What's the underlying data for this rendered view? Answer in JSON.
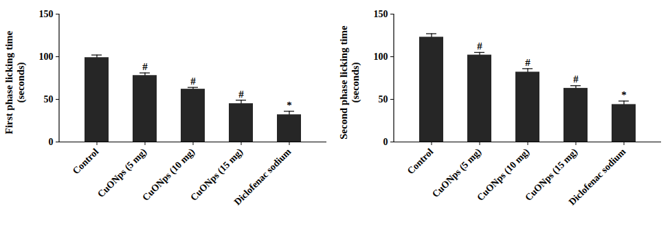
{
  "chart_data": [
    {
      "type": "bar",
      "ylabel": [
        "First phase licking time",
        "(seconds)"
      ],
      "categories": [
        "Control",
        "CuONps (5 mg)",
        "CuONps (10 mg)",
        "CuONps (15 mg)",
        "Diclofenac sodium"
      ],
      "values": [
        99,
        78,
        62,
        45,
        32
      ],
      "errors": [
        3,
        3,
        2,
        4,
        4
      ],
      "significance": [
        null,
        "#",
        "#",
        "#",
        "*"
      ],
      "color": "#262626",
      "ylim": [
        0,
        150
      ],
      "yticks": [
        0,
        50,
        100,
        150
      ],
      "grid": false
    },
    {
      "type": "bar",
      "ylabel": [
        "Second phase licking time",
        "(seconds)"
      ],
      "categories": [
        "Control",
        "CuONps (5 mg)",
        "CuONps (10 mg)",
        "CuONps (15 mg)",
        "Diclofenac sodium"
      ],
      "values": [
        123,
        102,
        82,
        63,
        44
      ],
      "errors": [
        4,
        3,
        4,
        3,
        4
      ],
      "significance": [
        null,
        "#",
        "#",
        "#",
        "*"
      ],
      "color": "#262626",
      "ylim": [
        0,
        150
      ],
      "yticks": [
        0,
        50,
        100,
        150
      ],
      "grid": false
    }
  ]
}
